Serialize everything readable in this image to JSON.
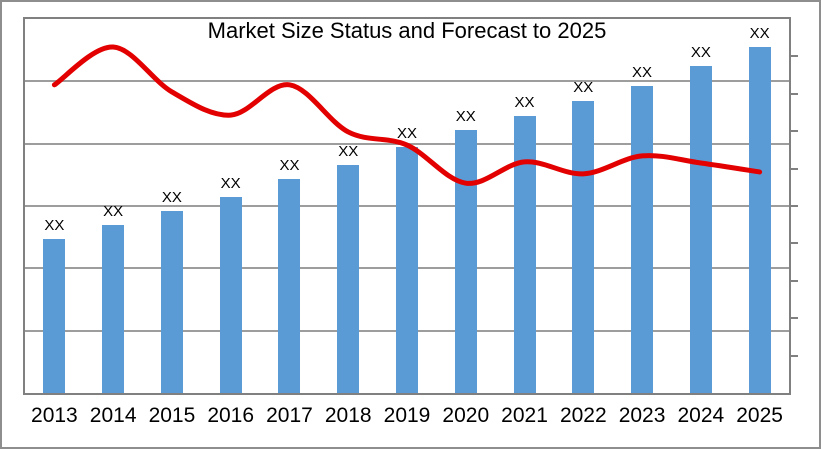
{
  "chart_data": {
    "type": "combo",
    "title": "Market Size Status and Forecast to 2025",
    "categories": [
      "2013",
      "2014",
      "2015",
      "2016",
      "2017",
      "2018",
      "2019",
      "2020",
      "2021",
      "2022",
      "2023",
      "2024",
      "2025"
    ],
    "series": [
      {
        "name": "bar-series",
        "type": "bar",
        "data_labels": [
          "XX",
          "XX",
          "XX",
          "XX",
          "XX",
          "XX",
          "XX",
          "XX",
          "XX",
          "XX",
          "XX",
          "XX",
          "XX"
        ],
        "values_pct_of_plot_height": [
          41.2,
          44.9,
          48.7,
          52.4,
          57.2,
          61.0,
          65.8,
          70.3,
          74.1,
          78.1,
          82.1,
          87.4,
          92.5
        ]
      },
      {
        "name": "line-series",
        "type": "line",
        "smooth": true,
        "values_pct_of_plot_height": [
          82.4,
          92.5,
          80.5,
          74.3,
          82.4,
          69.8,
          66.3,
          56.1,
          61.8,
          58.6,
          63.4,
          61.5,
          59.1
        ]
      }
    ],
    "xlabel": "",
    "ylabel": "",
    "axes": {
      "y_left": {
        "labels_visible": false,
        "gridline_divisions": 6
      },
      "y_right": {
        "labels_visible": false,
        "tick_divisions": 10
      },
      "x": {
        "labels_visible": true
      }
    },
    "grid": true,
    "legend": "none"
  },
  "colors": {
    "bar": "#5B9BD5",
    "line": "#E30000",
    "grid": "#9d9d9d",
    "axis": "#808080",
    "frame": "#8e8e8e",
    "text": "#000000",
    "background": "#FFFFFF"
  }
}
